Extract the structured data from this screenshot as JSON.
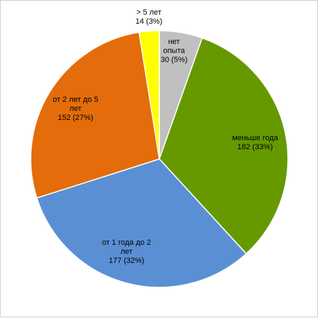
{
  "chart_data": {
    "type": "pie",
    "title": "",
    "start_angle_deg": 0,
    "direction": "clockwise",
    "legend": "none",
    "slices": [
      {
        "name": "нет опыта",
        "value": 30,
        "percent": "5%",
        "label_lines": [
          "нет",
          "опыта",
          "30 (5%)"
        ],
        "color": "#c0c0c0"
      },
      {
        "name": "меньше года",
        "value": 182,
        "percent": "33%",
        "label_lines": [
          "меньше года",
          "182 (33%)"
        ],
        "color": "#669900"
      },
      {
        "name": "от 1 года до 2 лет",
        "value": 177,
        "percent": "32%",
        "label_lines": [
          "от 1 года до 2",
          "лет",
          "177 (32%)"
        ],
        "color": "#5b8fd4"
      },
      {
        "name": "от 2 лет до 5 лет",
        "value": 152,
        "percent": "27%",
        "label_lines": [
          "от 2 лет до 5",
          "лет",
          "152 (27%)"
        ],
        "color": "#e46c0a"
      },
      {
        "name": "> 5 лет",
        "value": 14,
        "percent": "3%",
        "label_lines": [
          "> 5 лет",
          "14 (3%)"
        ],
        "color": "#ffff00"
      }
    ]
  }
}
